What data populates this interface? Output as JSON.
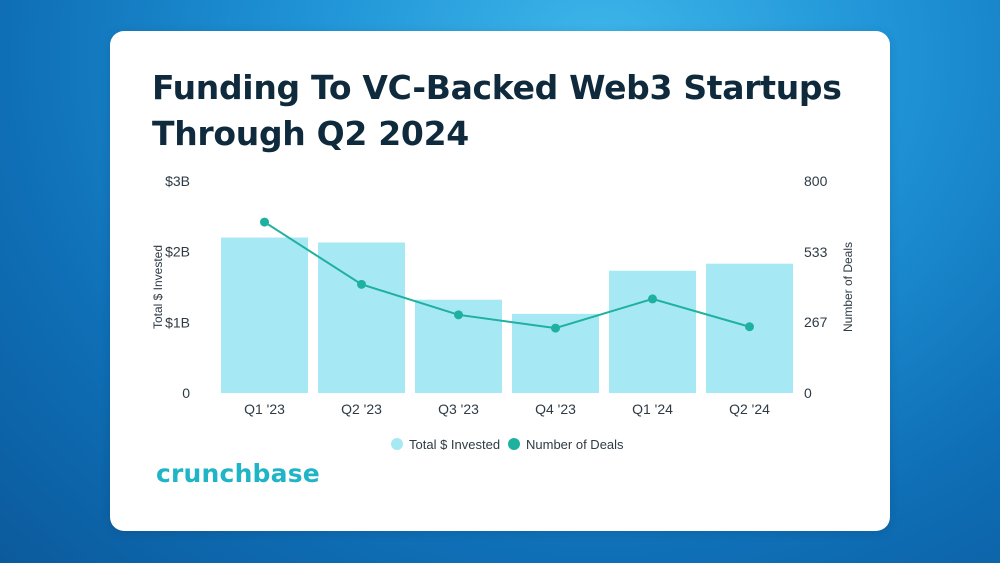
{
  "title_lines": [
    "Funding To VC-Backed Web3 Startups",
    "Through Q2 2024"
  ],
  "logo_text": "crunchbase",
  "chart_data": {
    "type": "bar",
    "categories": [
      "Q1 '23",
      "Q2 '23",
      "Q3 '23",
      "Q4 '23",
      "Q1 '24",
      "Q2 '24"
    ],
    "series": [
      {
        "name": "Total $ Invested",
        "type": "bar",
        "axis": "left",
        "values": [
          2.2,
          2.13,
          1.32,
          1.12,
          1.73,
          1.83
        ],
        "color": "#a7e8f5"
      },
      {
        "name": "Number of Deals",
        "type": "line",
        "axis": "right",
        "values": [
          645,
          410,
          295,
          245,
          355,
          250
        ],
        "color": "#1fb19f"
      }
    ],
    "y_left": {
      "label": "Total $ Invested",
      "ylim": [
        0,
        3
      ],
      "ticks": [
        "0",
        "$1B",
        "$2B",
        "$3B"
      ],
      "tick_values": [
        0,
        1,
        2,
        3
      ]
    },
    "y_right": {
      "label": "Number of Deals",
      "ylim": [
        0,
        800
      ],
      "ticks": [
        "0",
        "267",
        "533",
        "800"
      ],
      "tick_values": [
        0,
        267,
        533,
        800
      ]
    },
    "legend": {
      "placement": "bottom-center",
      "entries": [
        "Total $ Invested",
        "Number of Deals"
      ]
    },
    "grid": false
  }
}
